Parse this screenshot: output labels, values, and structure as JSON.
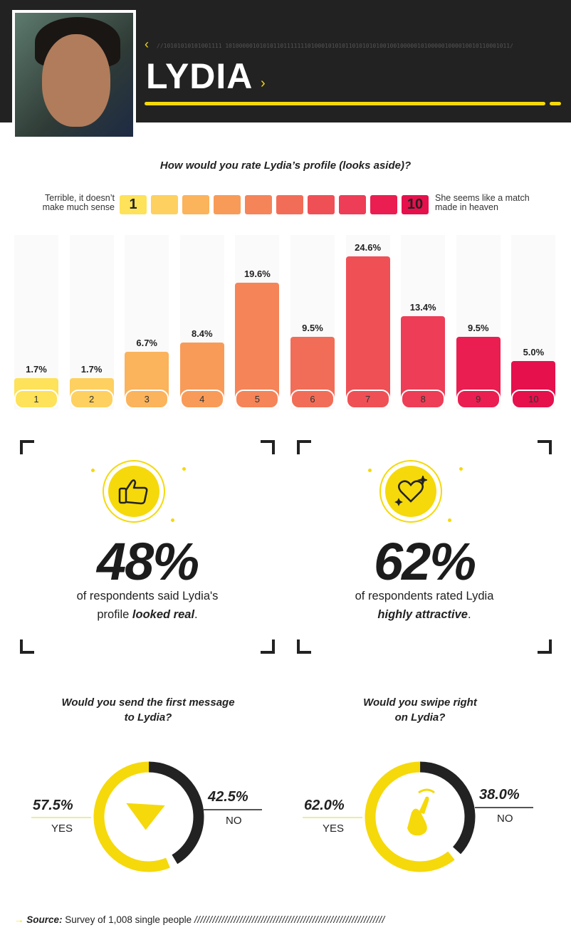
{
  "header": {
    "name": "LYDIA",
    "binary": "//10101010101001111 10100000101010110111111101000101010110101010100100100000101000001000010010110001011/1010101010100111111/"
  },
  "question": "How would you rate Lydia’s profile (looks aside)?",
  "scale": {
    "low_label": "Terrible, it doesn’t make much sense",
    "high_label": "She seems like a match made in heaven",
    "low_num": "1",
    "high_num": "10"
  },
  "colors": {
    "yellow": "#f5d90a",
    "dark": "#222222",
    "scale": [
      "#fde25a",
      "#fdd060",
      "#fbb35c",
      "#f89b58",
      "#f58459",
      "#f26d57",
      "#ef5056",
      "#ee3d56",
      "#ea1e50",
      "#e5104c"
    ]
  },
  "chart_data": [
    {
      "type": "bar",
      "categories": [
        "1",
        "2",
        "3",
        "4",
        "5",
        "6",
        "7",
        "8",
        "9",
        "10"
      ],
      "values": [
        1.7,
        1.7,
        6.7,
        8.4,
        19.6,
        9.5,
        24.6,
        13.4,
        9.5,
        5.0
      ],
      "labels": [
        "1.7%",
        "1.7%",
        "6.7%",
        "8.4%",
        "19.6%",
        "9.5%",
        "24.6%",
        "13.4%",
        "9.5%",
        "5.0%"
      ],
      "title": "How would you rate Lydia’s profile (looks aside)?",
      "ylim": [
        0,
        25
      ]
    },
    {
      "type": "pie",
      "title": "Would you send the first message to Lydia?",
      "categories": [
        "YES",
        "NO"
      ],
      "values": [
        57.5,
        42.5
      ],
      "labels": [
        "57.5%",
        "42.5%"
      ]
    },
    {
      "type": "pie",
      "title": "Would you swipe right on Lydia?",
      "categories": [
        "YES",
        "NO"
      ],
      "values": [
        62.0,
        38.0
      ],
      "labels": [
        "62.0%",
        "38.0%"
      ]
    }
  ],
  "stats": [
    {
      "icon": "thumbs-up-icon",
      "value": "48%",
      "line1": "of respondents said Lydia's",
      "pre": "profile ",
      "em": "looked real",
      "post": "."
    },
    {
      "icon": "heart-icon",
      "value": "62%",
      "line1": "of respondents rated Lydia",
      "pre": "",
      "em": "highly attractive",
      "post": "."
    }
  ],
  "donuts": [
    {
      "q1": "Would you send the first message",
      "q2": "to Lydia?",
      "yes_pct": "57.5%",
      "yes": "YES",
      "no_pct": "42.5%",
      "no": "NO"
    },
    {
      "q1": "Would you swipe right",
      "q2": "on Lydia?",
      "yes_pct": "62.0%",
      "yes": "YES",
      "no_pct": "38.0%",
      "no": "NO"
    }
  ],
  "source": {
    "label": "Source:",
    "text": "Survey of 1,008 single people",
    "slashes": "///////////////////////////////////////////////////////////////"
  }
}
